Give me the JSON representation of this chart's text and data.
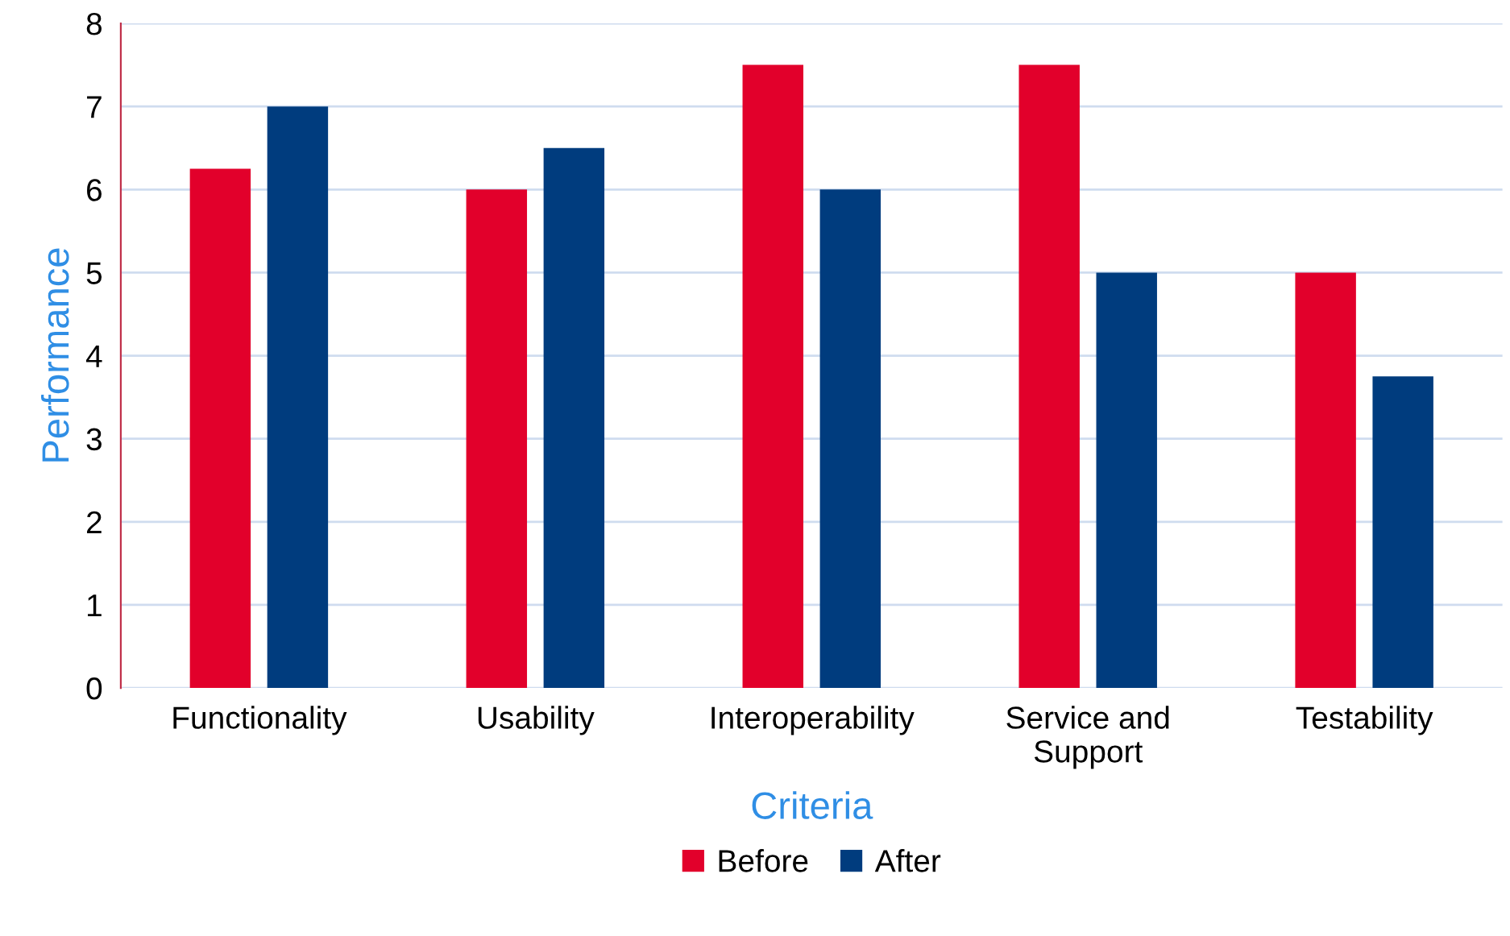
{
  "chart_data": {
    "type": "bar",
    "xlabel": "Criteria",
    "ylabel": "Performance",
    "categories": [
      "Functionality",
      "Usability",
      "Interoperability",
      "Service and\nSupport",
      "Testability"
    ],
    "series": [
      {
        "name": "Before",
        "color": "#e2002b",
        "values": [
          6.25,
          6,
          7.5,
          7.5,
          5
        ]
      },
      {
        "name": "After",
        "color": "#003c7e",
        "values": [
          7,
          6.5,
          6,
          5,
          3.75
        ]
      }
    ],
    "ylim": [
      0,
      8
    ],
    "yticks": [
      0,
      1,
      2,
      3,
      4,
      5,
      6,
      7,
      8
    ],
    "grid": "y",
    "legend": "bottom"
  }
}
